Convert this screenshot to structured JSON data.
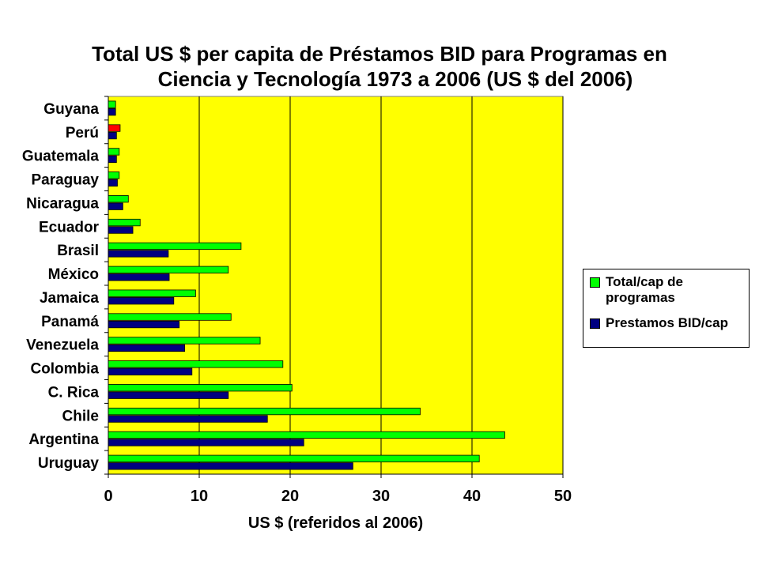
{
  "chart_data": {
    "type": "bar",
    "orientation": "horizontal",
    "title": [
      "Total US $ per capita de Préstamos BID para Programas  en",
      "Ciencia y Tecnología 1973 a 2006 (US $ del 2006)"
    ],
    "xlabel": "US $ (referidos al 2006)",
    "ylabel": "",
    "xlim": [
      0,
      50
    ],
    "xticks": [
      0,
      10,
      20,
      30,
      40,
      50
    ],
    "grid": "vertical",
    "plot_background": "#ffff00",
    "legend_position": "right",
    "categories": [
      "Guyana",
      "Perú",
      "Guatemala",
      "Paraguay",
      "Nicaragua",
      "Ecuador",
      "Brasil",
      "México",
      "Jamaica",
      "Panamá",
      "Venezuela",
      "Colombia",
      "C. Rica",
      "Chile",
      "Argentina",
      "Uruguay"
    ],
    "series": [
      {
        "name": "Total/cap de programas",
        "legend_lines": [
          "Total/cap de",
          "programas"
        ],
        "color": "#00ff00",
        "highlight": {
          "category": "Perú",
          "color": "#ff0000"
        },
        "values": [
          0.8,
          1.3,
          1.2,
          1.2,
          2.2,
          3.5,
          14.6,
          13.2,
          9.6,
          13.5,
          16.7,
          19.2,
          20.2,
          34.3,
          43.6,
          40.8
        ]
      },
      {
        "name": "Prestamos BID/cap",
        "legend_lines": [
          "Prestamos BID/cap"
        ],
        "color": "#000080",
        "values": [
          0.8,
          0.9,
          0.9,
          1.0,
          1.6,
          2.7,
          6.6,
          6.7,
          7.2,
          7.8,
          8.4,
          9.2,
          13.2,
          17.5,
          21.5,
          26.9
        ]
      }
    ]
  }
}
